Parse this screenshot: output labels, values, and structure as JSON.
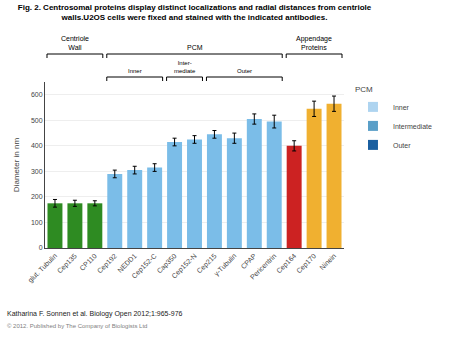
{
  "chart_data": {
    "type": "bar",
    "title": "Fig. 2. Centrosomal proteins display distinct localizations and radial distances from centriole\nwalls.U2OS cells were fixed and stained with the indicated antibodies.",
    "categories": [
      "glut. Tubulin",
      "Cep135",
      "CP110",
      "Cep192",
      "NEDD1",
      "Cep152-C",
      "Cap350",
      "Cep152-N",
      "Cep215",
      "γ-Tubulin",
      "CPAP",
      "Pericentrin",
      "Cep164",
      "Cep170",
      "Ninein"
    ],
    "values": [
      175,
      175,
      175,
      290,
      305,
      315,
      415,
      425,
      445,
      430,
      505,
      495,
      400,
      545,
      565
    ],
    "errors": [
      15,
      12,
      10,
      15,
      15,
      15,
      15,
      15,
      15,
      20,
      20,
      25,
      20,
      30,
      30
    ],
    "colors": [
      "#2e8b22",
      "#2e8b22",
      "#2e8b22",
      "#7bbde8",
      "#7bbde8",
      "#7bbde8",
      "#7bbde8",
      "#7bbde8",
      "#7bbde8",
      "#7bbde8",
      "#7bbde8",
      "#7bbde8",
      "#cc2222",
      "#f0b030",
      "#f0b030"
    ],
    "ylabel": "Diameter in nm",
    "ylim": [
      0,
      650
    ],
    "yticks": [
      0,
      100,
      200,
      300,
      400,
      500,
      600
    ],
    "grid": true,
    "groups": [
      {
        "text": "Centriole\nWall",
        "from": "glut. Tubulin",
        "to": "CP110"
      },
      {
        "text": "PCM",
        "from": "Cep192",
        "to": "Pericentrin"
      },
      {
        "text": "Appendage\nProteins",
        "from": "Cep164",
        "to": "Ninein"
      }
    ],
    "subgroups": [
      {
        "text": "Inner",
        "from": "Cep192",
        "to": "Cep152-C"
      },
      {
        "text": "Inter-\nmediate",
        "from": "Cap350",
        "to": "Cep152-N"
      },
      {
        "text": "Outer",
        "from": "Cep215",
        "to": "Pericentrin"
      }
    ],
    "legend": "right",
    "legend_title": "PCM",
    "legend_items": [
      {
        "name": "Inner",
        "color": "#aed4f0"
      },
      {
        "name": "Intermediate",
        "color": "#5a9fc8"
      },
      {
        "name": "Outer",
        "color": "#1a5fa0"
      }
    ],
    "footnotes": [
      "Katharina F. Sonnen et al. Biology Open 2012;1:965-976",
      "© 2012. Published by The Company of Biologists Ltd"
    ]
  }
}
